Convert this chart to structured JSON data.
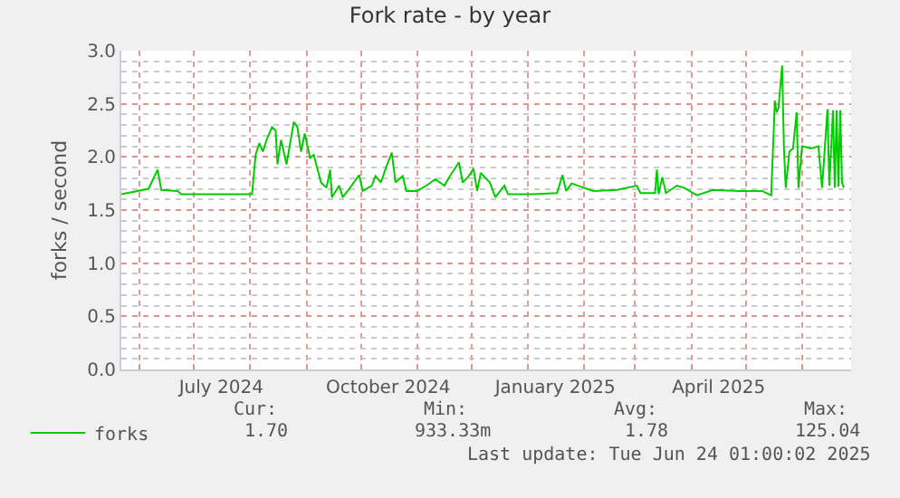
{
  "chart_data": {
    "type": "line",
    "title": "Fork rate - by year",
    "ylabel": "forks / second",
    "x": [
      "2024-05-22",
      "2024-06-06",
      "2024-06-11",
      "2024-06-13",
      "2024-06-22",
      "2024-06-24",
      "2024-08-01",
      "2024-08-02",
      "2024-08-04",
      "2024-08-06",
      "2024-08-08",
      "2024-08-10",
      "2024-08-13",
      "2024-08-15",
      "2024-08-16",
      "2024-08-18",
      "2024-08-21",
      "2024-08-25",
      "2024-08-27",
      "2024-08-29",
      "2024-08-31",
      "2024-09-03",
      "2024-09-05",
      "2024-09-09",
      "2024-09-12",
      "2024-09-14",
      "2024-09-15",
      "2024-09-19",
      "2024-09-21",
      "2024-09-25",
      "2024-09-30",
      "2024-10-02",
      "2024-10-07",
      "2024-10-09",
      "2024-10-12",
      "2024-10-15",
      "2024-10-18",
      "2024-10-20",
      "2024-10-24",
      "2024-10-26",
      "2024-11-01",
      "2024-11-06",
      "2024-11-11",
      "2024-11-16",
      "2024-11-19",
      "2024-11-24",
      "2024-11-26",
      "2024-11-29",
      "2024-12-02",
      "2024-12-04",
      "2024-12-06",
      "2024-12-11",
      "2024-12-14",
      "2024-12-19",
      "2024-12-21",
      "2025-01-03",
      "2025-01-17",
      "2025-01-20",
      "2025-01-22",
      "2025-01-25",
      "2025-01-30",
      "2025-02-06",
      "2025-02-19",
      "2025-03-02",
      "2025-03-04",
      "2025-03-12",
      "2025-03-13",
      "2025-03-14",
      "2025-03-16",
      "2025-03-18",
      "2025-03-24",
      "2025-03-28",
      "2025-04-04",
      "2025-04-13",
      "2025-04-27",
      "2025-05-10",
      "2025-05-15",
      "2025-05-17",
      "2025-05-18",
      "2025-05-19",
      "2025-05-21",
      "2025-05-22",
      "2025-05-23",
      "2025-05-25",
      "2025-05-27",
      "2025-05-29",
      "2025-05-30",
      "2025-06-01",
      "2025-06-06",
      "2025-06-10",
      "2025-06-12",
      "2025-06-15",
      "2025-06-16",
      "2025-06-18",
      "2025-06-19",
      "2025-06-20",
      "2025-06-21",
      "2025-06-22",
      "2025-06-23",
      "2025-06-24"
    ],
    "series": [
      {
        "name": "forks",
        "color": "#00cc00",
        "values": [
          1.65,
          1.7,
          1.88,
          1.69,
          1.68,
          1.65,
          1.65,
          1.65,
          2.02,
          2.13,
          2.05,
          2.16,
          2.28,
          2.25,
          1.93,
          2.16,
          1.93,
          2.33,
          2.28,
          2.05,
          2.22,
          1.99,
          2.02,
          1.76,
          1.71,
          1.88,
          1.62,
          1.73,
          1.62,
          1.71,
          1.83,
          1.68,
          1.73,
          1.82,
          1.76,
          1.91,
          2.04,
          1.76,
          1.82,
          1.68,
          1.68,
          1.73,
          1.79,
          1.73,
          1.82,
          1.95,
          1.76,
          1.81,
          1.89,
          1.68,
          1.85,
          1.76,
          1.62,
          1.73,
          1.65,
          1.65,
          1.66,
          1.83,
          1.68,
          1.75,
          1.72,
          1.68,
          1.69,
          1.73,
          1.66,
          1.66,
          1.88,
          1.65,
          1.81,
          1.66,
          1.73,
          1.71,
          1.64,
          1.69,
          1.68,
          1.68,
          1.64,
          2.53,
          2.42,
          2.46,
          2.86,
          2.08,
          1.71,
          2.05,
          2.08,
          2.42,
          1.71,
          2.1,
          2.08,
          2.1,
          1.71,
          2.45,
          1.73,
          2.44,
          1.71,
          2.44,
          1.72,
          2.44,
          1.76,
          1.71
        ]
      }
    ],
    "xlim": [
      "2024-05-22",
      "2025-06-28"
    ],
    "xticks": [
      {
        "value": "2024-07-16",
        "label": "July 2024"
      },
      {
        "value": "2024-10-16",
        "label": "October 2024"
      },
      {
        "value": "2025-01-16",
        "label": "January 2025"
      },
      {
        "value": "2025-04-16",
        "label": "April 2025"
      }
    ],
    "ylim": [
      0,
      3
    ],
    "yticks": [
      {
        "value": 0,
        "label": "0.0"
      },
      {
        "value": 0.5,
        "label": "0.5"
      },
      {
        "value": 1,
        "label": "1.0"
      },
      {
        "value": 1.5,
        "label": "1.5"
      },
      {
        "value": 2,
        "label": "2.0"
      },
      {
        "value": 2.5,
        "label": "2.5"
      },
      {
        "value": 3,
        "label": "3.0"
      }
    ],
    "grid": true,
    "legend": "bottom left",
    "marker": "none",
    "line_style": "solid",
    "annotations": [
      "Cur:",
      "Min:",
      "Avg:",
      "Max:",
      "1.70",
      "933.33m",
      "1.78",
      "125.04",
      "Last update: Tue Jun 24 01:00:02 2025"
    ]
  }
}
